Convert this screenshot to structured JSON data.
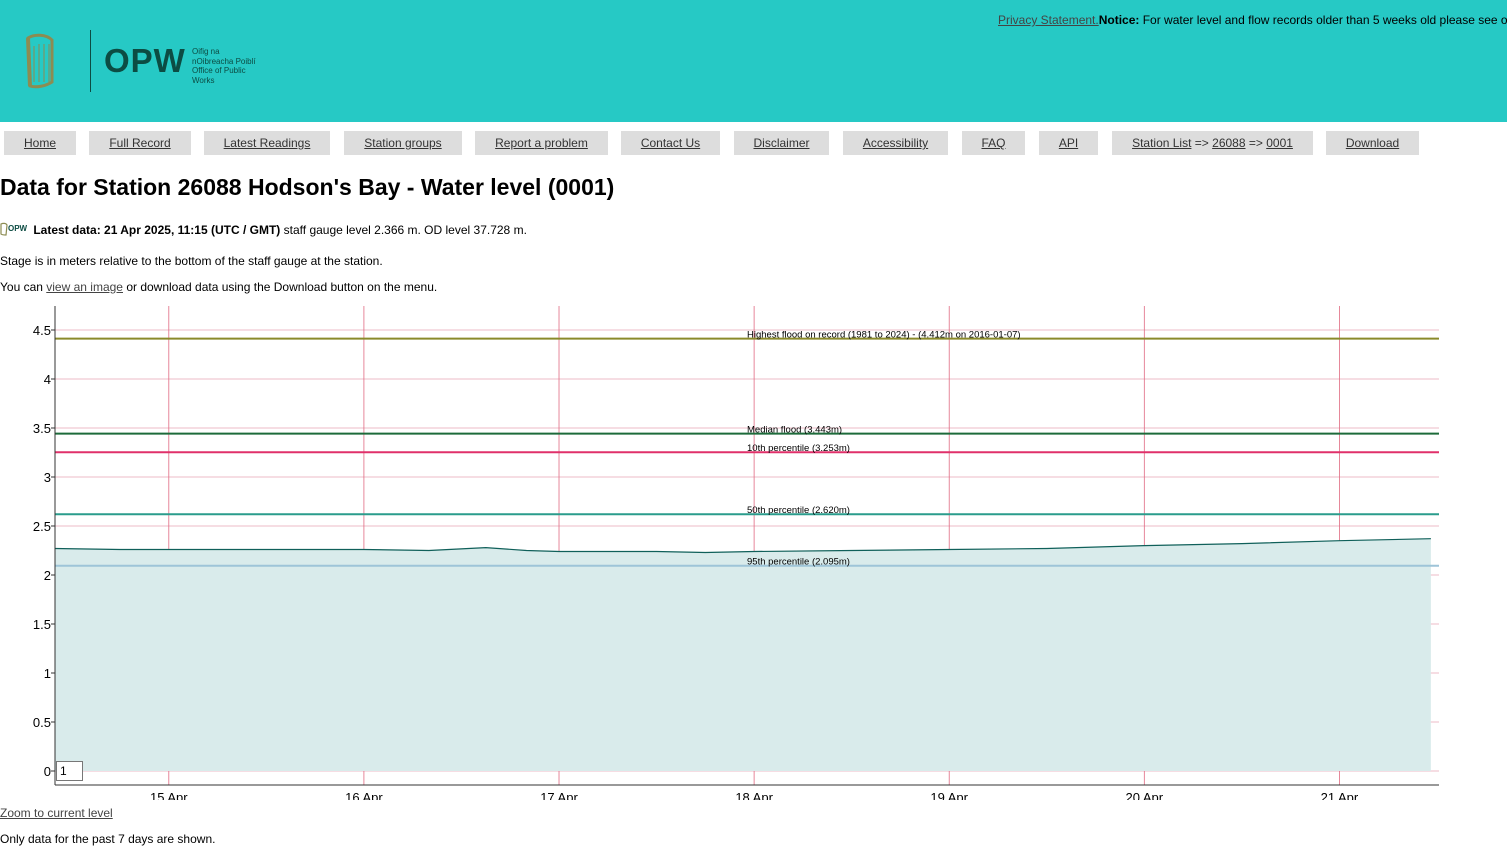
{
  "header": {
    "logo_text": "OPW",
    "logo_sub": [
      "Oifig na",
      "nOibreacha Poiblí",
      "Office of Public Works"
    ],
    "privacy_link": "Privacy Statement.",
    "notice_label": "Notice:",
    "notice_text": " For water level and flow records older than 5 weeks old please see o"
  },
  "nav": {
    "items": [
      "Home",
      "Full Record",
      "Latest Readings",
      "Station groups",
      "Report a problem",
      "Contact Us",
      "Disclaimer",
      "Accessibility",
      "FAQ",
      "API"
    ],
    "station_list": "Station List",
    "arrow": "=>",
    "station_id": "26088",
    "sensor_id": "0001",
    "download": "Download"
  },
  "page": {
    "title": "Data for Station 26088 Hodson's Bay - Water level (0001)",
    "latest_label": "Latest data: 21 Apr 2025, 11:15 (UTC / GMT)",
    "latest_text": " staff gauge level 2.366 m. OD level 37.728 m.",
    "stage_note": "Stage is in meters relative to the bottom of the staff gauge at the station.",
    "you_can": "You can ",
    "view_image_link": "view an image",
    "download_note": " or download data using the Download button on the menu.",
    "zoom_value": "1",
    "zoom_link": "Zoom to current level",
    "footer_note": "Only data for the past 7 days are shown."
  },
  "colors": {
    "header_bg": "#26c9c5",
    "series_fill": "#d9ebeb",
    "series_line": "#10605a",
    "grid": "#e8a4b4"
  },
  "chart_data": {
    "type": "area",
    "title": "",
    "xlabel": "",
    "ylabel": "",
    "ylim": [
      0,
      4.5
    ],
    "yticks": [
      "0",
      "0.5",
      "1",
      "1.5",
      "2",
      "2.5",
      "3",
      "3.5",
      "4",
      "4.5"
    ],
    "xlim": [
      "2025-04-14 10:00",
      "2025-04-21 12:15"
    ],
    "xticks": [
      {
        "label": "15 Apr",
        "date": "2025-04-15"
      },
      {
        "label": "16 Apr",
        "date": "2025-04-16"
      },
      {
        "label": "17 Apr",
        "date": "2025-04-17"
      },
      {
        "label": "18 Apr",
        "date": "2025-04-18"
      },
      {
        "label": "19 Apr",
        "date": "2025-04-19"
      },
      {
        "label": "20 Apr",
        "date": "2025-04-20"
      },
      {
        "label": "21 Apr",
        "date": "2025-04-21"
      }
    ],
    "grid": true,
    "series": [
      {
        "points": [
          [
            "2025-04-14 10:00",
            2.27
          ],
          [
            "2025-04-14 18:00",
            2.26
          ],
          [
            "2025-04-15 00:00",
            2.26
          ],
          [
            "2025-04-15 12:00",
            2.26
          ],
          [
            "2025-04-16 00:00",
            2.26
          ],
          [
            "2025-04-16 08:00",
            2.25
          ],
          [
            "2025-04-16 15:00",
            2.28
          ],
          [
            "2025-04-16 20:00",
            2.25
          ],
          [
            "2025-04-17 00:00",
            2.24
          ],
          [
            "2025-04-17 12:00",
            2.24
          ],
          [
            "2025-04-17 18:00",
            2.23
          ],
          [
            "2025-04-18 00:00",
            2.24
          ],
          [
            "2025-04-18 12:00",
            2.25
          ],
          [
            "2025-04-19 00:00",
            2.26
          ],
          [
            "2025-04-19 12:00",
            2.27
          ],
          [
            "2025-04-20 00:00",
            2.3
          ],
          [
            "2025-04-20 12:00",
            2.32
          ],
          [
            "2025-04-21 00:00",
            2.35
          ],
          [
            "2025-04-21 11:15",
            2.37
          ]
        ]
      }
    ],
    "reference_lines": [
      {
        "label": "Highest flood on record (1981 to 2024) - (4.412m on 2016-01-07)",
        "value": 4.412,
        "color": "#8a8a2a"
      },
      {
        "label": "Median flood (3.443m)",
        "value": 3.443,
        "color": "#1d6b3a"
      },
      {
        "label": "10th percentile (3.253m)",
        "value": 3.253,
        "color": "#e0306a"
      },
      {
        "label": "50th percentile (2.620m)",
        "value": 2.62,
        "color": "#2a9c8c"
      },
      {
        "label": "95th percentile (2.095m)",
        "value": 2.095,
        "color": "#9ec4d8"
      }
    ]
  }
}
